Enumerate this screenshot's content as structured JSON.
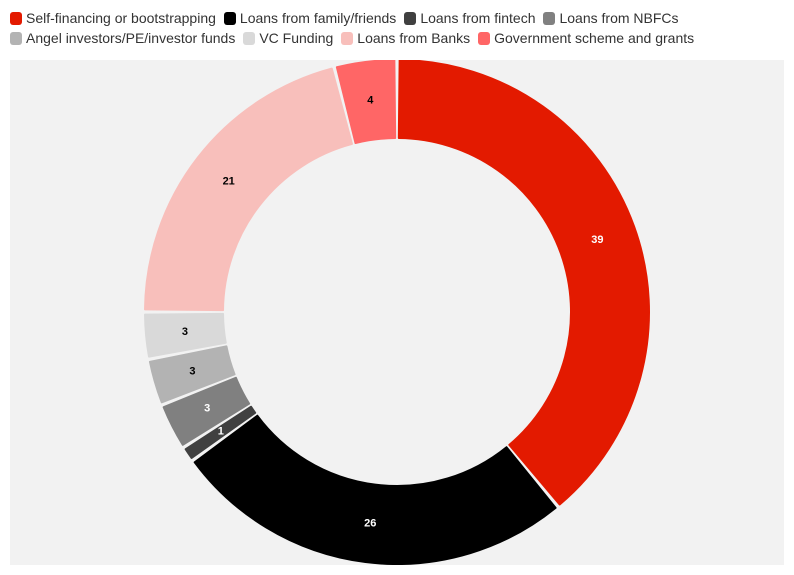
{
  "chart_data": {
    "type": "pie",
    "subtype": "donut",
    "title": "",
    "legend_position": "top-left",
    "slices": [
      {
        "name": "Self-financing or bootstrapping",
        "value": 39,
        "color": "#e31a00",
        "label_color": "#ffffff"
      },
      {
        "name": "Loans from family/friends",
        "value": 26,
        "color": "#000000",
        "label_color": "#ffffff"
      },
      {
        "name": "Loans from fintech",
        "value": 1,
        "color": "#404040",
        "label_color": "#ffffff"
      },
      {
        "name": "Loans from NBFCs",
        "value": 3,
        "color": "#808080",
        "label_color": "#ffffff"
      },
      {
        "name": "Angel investors/PE/investor funds",
        "value": 3,
        "color": "#b3b3b3",
        "label_color": "#000000"
      },
      {
        "name": "VC Funding",
        "value": 3,
        "color": "#d9d9d9",
        "label_color": "#000000"
      },
      {
        "name": "Loans from Banks",
        "value": 21,
        "color": "#f8bfbb",
        "label_color": "#000000"
      },
      {
        "name": "Government scheme and grants",
        "value": 4,
        "color": "#ff6666",
        "label_color": "#000000"
      }
    ]
  }
}
